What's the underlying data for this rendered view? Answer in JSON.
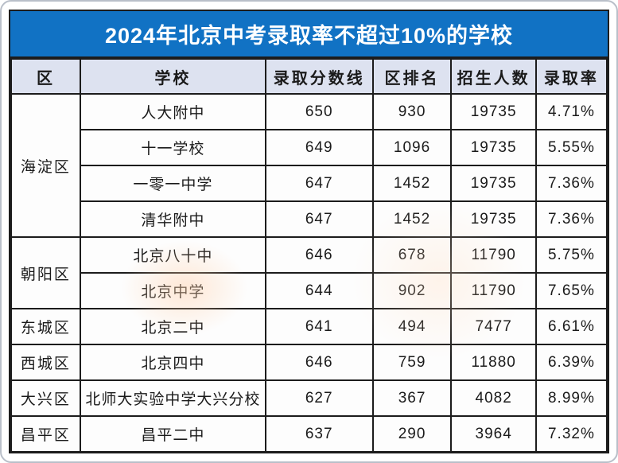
{
  "title": "2024年北京中考录取率不超过10%的学校",
  "table": {
    "headers": [
      "区",
      "学校",
      "录取分数线",
      "区排名",
      "招生人数",
      "录取率"
    ],
    "groups": [
      {
        "district": "海淀区",
        "rows": [
          {
            "school": "人大附中",
            "score": "650",
            "rank": "930",
            "enrollment": "19735",
            "rate": "4.71%"
          },
          {
            "school": "十一学校",
            "score": "649",
            "rank": "1096",
            "enrollment": "19735",
            "rate": "5.55%"
          },
          {
            "school": "一零一中学",
            "score": "647",
            "rank": "1452",
            "enrollment": "19735",
            "rate": "7.36%"
          },
          {
            "school": "清华附中",
            "score": "647",
            "rank": "1452",
            "enrollment": "19735",
            "rate": "7.36%"
          }
        ]
      },
      {
        "district": "朝阳区",
        "rows": [
          {
            "school": "北京八十中",
            "score": "646",
            "rank": "678",
            "enrollment": "11790",
            "rate": "5.75%"
          },
          {
            "school": "北京中学",
            "score": "644",
            "rank": "902",
            "enrollment": "11790",
            "rate": "7.65%"
          }
        ]
      },
      {
        "district": "东城区",
        "rows": [
          {
            "school": "北京二中",
            "score": "641",
            "rank": "494",
            "enrollment": "7477",
            "rate": "6.61%"
          }
        ]
      },
      {
        "district": "西城区",
        "rows": [
          {
            "school": "北京四中",
            "score": "646",
            "rank": "759",
            "enrollment": "11880",
            "rate": "6.39%"
          }
        ]
      },
      {
        "district": "大兴区",
        "rows": [
          {
            "school": "北师大实验中学大兴分校",
            "score": "627",
            "rank": "367",
            "enrollment": "4082",
            "rate": "8.99%"
          }
        ]
      },
      {
        "district": "昌平区",
        "rows": [
          {
            "school": "昌平二中",
            "score": "637",
            "rank": "290",
            "enrollment": "3964",
            "rate": "7.32%"
          }
        ]
      }
    ]
  },
  "chart_data": {
    "type": "table",
    "title": "2024年北京中考录取率不超过10%的学校",
    "columns": [
      "区",
      "学校",
      "录取分数线",
      "区排名",
      "招生人数",
      "录取率"
    ],
    "rows": [
      [
        "海淀区",
        "人大附中",
        650,
        930,
        19735,
        "4.71%"
      ],
      [
        "海淀区",
        "十一学校",
        649,
        1096,
        19735,
        "5.55%"
      ],
      [
        "海淀区",
        "一零一中学",
        647,
        1452,
        19735,
        "7.36%"
      ],
      [
        "海淀区",
        "清华附中",
        647,
        1452,
        19735,
        "7.36%"
      ],
      [
        "朝阳区",
        "北京八十中",
        646,
        678,
        11790,
        "5.75%"
      ],
      [
        "朝阳区",
        "北京中学",
        644,
        902,
        11790,
        "7.65%"
      ],
      [
        "东城区",
        "北京二中",
        641,
        494,
        7477,
        "6.61%"
      ],
      [
        "西城区",
        "北京四中",
        646,
        759,
        11880,
        "6.39%"
      ],
      [
        "大兴区",
        "北师大实验中学大兴分校",
        627,
        367,
        4082,
        "8.99%"
      ],
      [
        "昌平区",
        "昌平二中",
        637,
        290,
        3964,
        "7.32%"
      ]
    ]
  },
  "colors": {
    "banner_blue": "#1172c4",
    "header_bg": "#dde2f0",
    "border_dark": "#1c1c1c",
    "card_border": "#b9bfc9",
    "text": "#1a1a1a",
    "title_text": "#ffffff"
  }
}
